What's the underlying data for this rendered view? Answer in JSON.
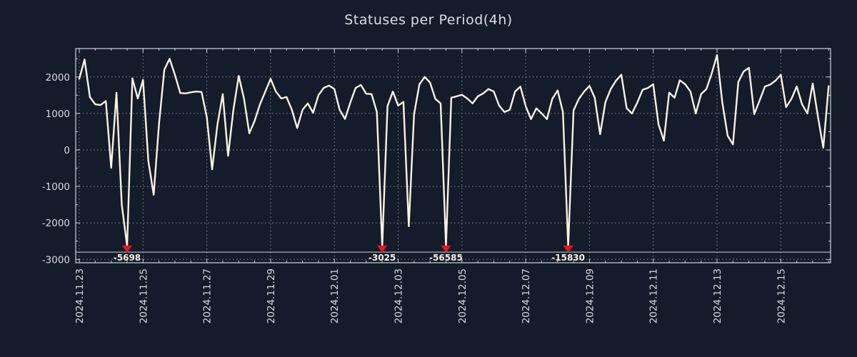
{
  "title": "Statuses per Period(4h)",
  "colors": {
    "background": "#141c2b",
    "line": "#faf3e0",
    "grid": "#99a1ad",
    "frame": "#cfd3d9",
    "tick_text": "#d8dade",
    "marker_red": "#e8151d",
    "annotation_text": "#f8f3e2"
  },
  "chart_data": {
    "type": "line",
    "title": "Statuses per Period(4h)",
    "x_start": "2024.11.23 00:00",
    "interval_hours": 4,
    "grid": "dotted",
    "legend_position": "none",
    "ylim": [
      -3100,
      2780
    ],
    "yticks": [
      2000,
      1000,
      0,
      -1000,
      -2000,
      -3000
    ],
    "xtick_labels": [
      "2024.11.23",
      "2024.11.25",
      "2024.11.27",
      "2024.11.29",
      "2024.12.01",
      "2024.12.03",
      "2024.12.05",
      "2024.12.07",
      "2024.12.09",
      "2024.12.11",
      "2024.12.13",
      "2024.12.15"
    ],
    "xtick_every_days": 2,
    "minor_xtick_days": 0.5,
    "minor_ytick_step": 500,
    "clip_min": -2640,
    "clip_line_value": -2800,
    "values": [
      1950,
      2480,
      1450,
      1250,
      1230,
      1340,
      -490,
      1570,
      -1500,
      -5698,
      1960,
      1410,
      1920,
      -300,
      -1230,
      700,
      2200,
      2500,
      2060,
      1560,
      1550,
      1580,
      1600,
      1590,
      900,
      -530,
      700,
      1530,
      -160,
      1100,
      2030,
      1400,
      455,
      800,
      1250,
      1600,
      1950,
      1600,
      1410,
      1450,
      1100,
      600,
      1100,
      1275,
      1020,
      1500,
      1700,
      1765,
      1670,
      1100,
      850,
      1300,
      1700,
      1780,
      1540,
      1530,
      1040,
      -3025,
      1200,
      1600,
      1215,
      1315,
      -2090,
      980,
      1800,
      2000,
      1850,
      1400,
      1275,
      -56585,
      1430,
      1470,
      1510,
      1410,
      1275,
      1470,
      1550,
      1670,
      1600,
      1215,
      1040,
      1100,
      1600,
      1735,
      1200,
      845,
      1140,
      1000,
      845,
      1400,
      1630,
      1040,
      -15830,
      1080,
      1400,
      1600,
      1755,
      1430,
      430,
      1310,
      1670,
      1900,
      2060,
      1140,
      1000,
      1300,
      1650,
      1700,
      1800,
      700,
      255,
      1570,
      1430,
      1910,
      1800,
      1600,
      1000,
      1530,
      1670,
      2100,
      2600,
      1300,
      390,
      150,
      1860,
      2150,
      2250,
      980,
      1350,
      1735,
      1790,
      1900,
      2060,
      1175,
      1400,
      1740,
      1250,
      1000,
      1820,
      900,
      60,
      1750
    ],
    "annotations": [
      {
        "index": 9,
        "label": "-5698",
        "value": -5698,
        "date": "2024.11.24 12:00"
      },
      {
        "index": 57,
        "label": "-3025",
        "value": -3025,
        "date": "2024.12.02 12:00"
      },
      {
        "index": 69,
        "label": "-56585",
        "value": -56585,
        "date": "2024.12.04 12:00"
      },
      {
        "index": 92,
        "label": "-15830",
        "value": -15830,
        "date": "2024.12.08 08:00"
      }
    ]
  }
}
